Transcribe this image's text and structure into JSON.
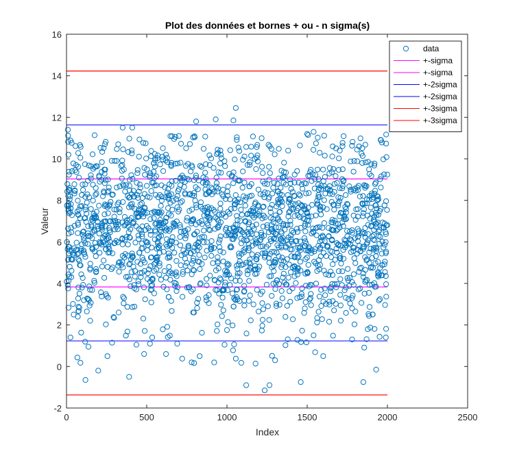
{
  "chart_data": {
    "type": "scatter",
    "title": "Plot des données et bornes + ou - n sigma(s)",
    "xlabel": "Index",
    "ylabel": "Valeur",
    "xlim": [
      0,
      2500
    ],
    "ylim": [
      -2,
      16
    ],
    "xticks": [
      0,
      500,
      1000,
      1500,
      2000,
      2500
    ],
    "yticks": [
      -2,
      0,
      2,
      4,
      6,
      8,
      10,
      12,
      14,
      16
    ],
    "grid": false,
    "legend_position": "top-right",
    "scatter": {
      "name": "data",
      "color": "#0072BD",
      "marker": "circle-open",
      "count": 2000,
      "x_range": [
        1,
        2000
      ],
      "mean": 6.43,
      "sigma": 2.6,
      "points": [
        [
          8,
          11.4
        ],
        [
          12,
          10.2
        ],
        [
          18,
          8.6
        ],
        [
          25,
          1.4
        ],
        [
          30,
          4.3
        ],
        [
          45,
          2.5
        ],
        [
          60,
          9.7
        ],
        [
          96,
          3.8
        ],
        [
          118,
          -0.65
        ],
        [
          140,
          3.2
        ],
        [
          198,
          -0.2
        ],
        [
          255,
          0.5
        ],
        [
          300,
          9.9
        ],
        [
          350,
          11.5
        ],
        [
          390,
          -0.5
        ],
        [
          410,
          11.5
        ],
        [
          520,
          1.1
        ],
        [
          620,
          0.6
        ],
        [
          700,
          11.1
        ],
        [
          780,
          0.2
        ],
        [
          808,
          11.8
        ],
        [
          830,
          0.5
        ],
        [
          930,
          11.9
        ],
        [
          1040,
          11.85
        ],
        [
          1055,
          12.45
        ],
        [
          1120,
          -0.9
        ],
        [
          1235,
          -1.15
        ],
        [
          1265,
          -0.9
        ],
        [
          1300,
          0.3
        ],
        [
          1460,
          -0.75
        ],
        [
          1500,
          11.2
        ],
        [
          1540,
          11.3
        ],
        [
          1600,
          0.5
        ],
        [
          1780,
          1.3
        ],
        [
          1850,
          -0.75
        ],
        [
          1930,
          -0.15
        ],
        [
          1960,
          10.9
        ],
        [
          1990,
          1.4
        ]
      ]
    },
    "series": [
      {
        "name": "+-sigma",
        "color": "#FF00FF",
        "values": [
          9.03,
          3.83
        ],
        "x": [
          1,
          2000
        ]
      },
      {
        "name": "+-sigma",
        "color": "#FF00FF",
        "values": [
          9.03,
          3.83
        ],
        "x": [
          1,
          2000
        ]
      },
      {
        "name": "+-2sigma",
        "color": "#0000FF",
        "values": [
          11.63,
          1.23
        ],
        "x": [
          1,
          2000
        ]
      },
      {
        "name": "+-2sigma",
        "color": "#0000FF",
        "values": [
          11.63,
          1.23
        ],
        "x": [
          1,
          2000
        ]
      },
      {
        "name": "+-3sigma",
        "color": "#FF0000",
        "values": [
          14.23,
          -1.37
        ],
        "x": [
          1,
          2000
        ]
      },
      {
        "name": "+-3sigma",
        "color": "#FF0000",
        "values": [
          14.23,
          -1.37
        ],
        "x": [
          1,
          2000
        ]
      }
    ]
  }
}
